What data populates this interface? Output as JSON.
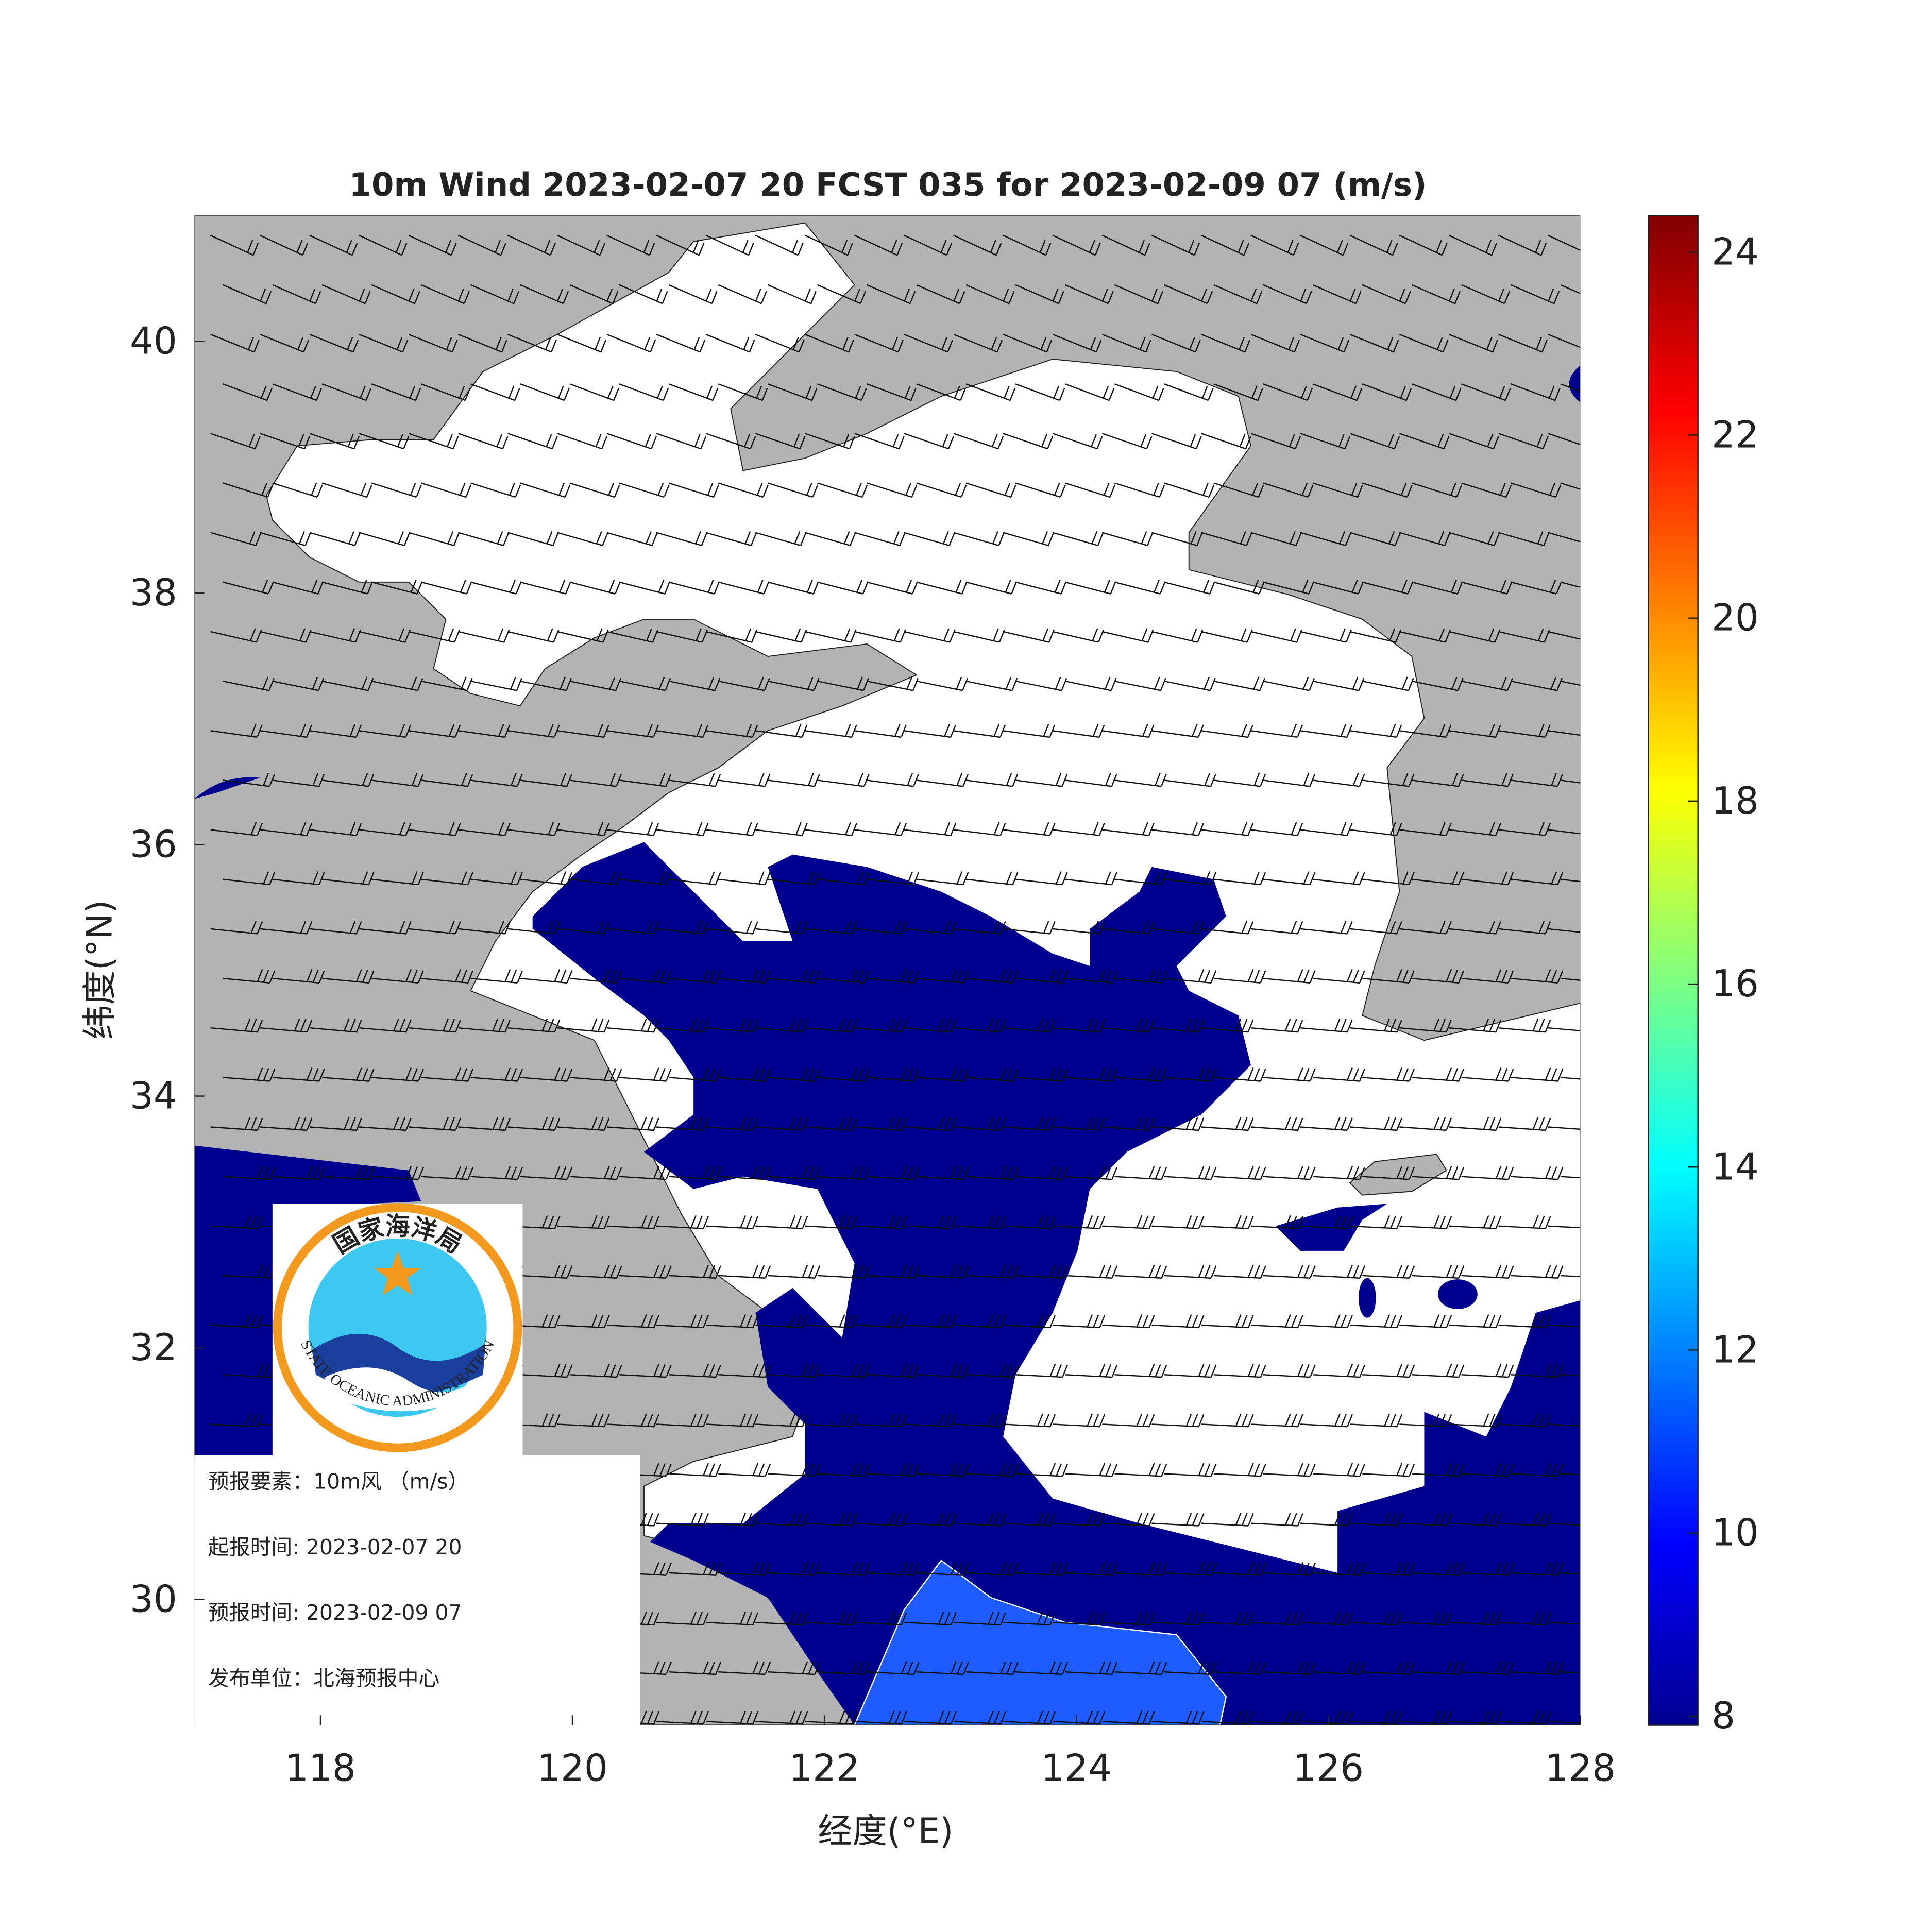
{
  "chart_data": {
    "type": "map",
    "title": "10m Wind 2023-02-07 20 FCST 035 for 2023-02-09 07 (m/s)",
    "x_label": "经度(°E)",
    "y_label": "纬度(°N)",
    "xlim": [
      117,
      128
    ],
    "xticks": [
      118,
      120,
      122,
      124,
      126,
      128
    ],
    "ylim": [
      29,
      41
    ],
    "yticks": [
      30,
      32,
      34,
      36,
      38,
      40
    ],
    "colorbar": {
      "clim": [
        7.9,
        24.4
      ],
      "ticks": [
        8,
        10,
        12,
        14,
        16,
        18,
        20,
        22,
        24
      ],
      "colormap": "jet"
    }
  },
  "logo": {
    "name_cn": "国家海洋局",
    "name_en": "STATE OCEANIC ADMINISTRATION"
  },
  "info": [
    "预报要素：10m风 （m/s）",
    "起报时间: 2023-02-07 20",
    "预报时间: 2023-02-09 07",
    "发布单位：北海预报中心"
  ]
}
